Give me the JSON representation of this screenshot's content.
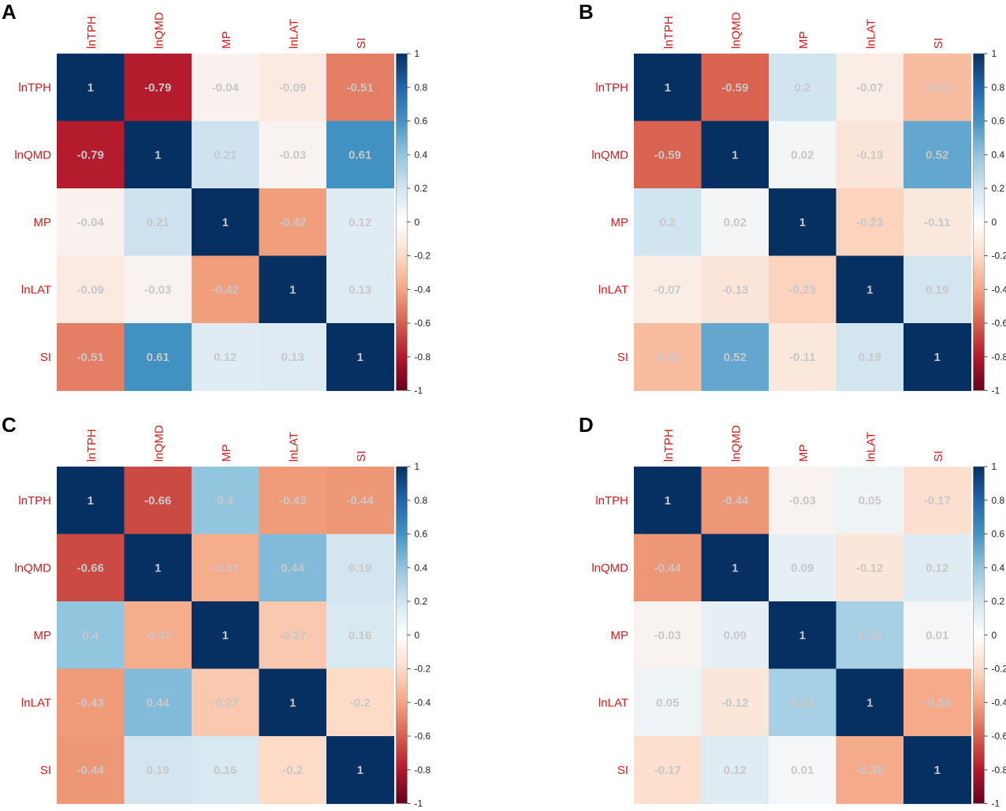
{
  "chart_data": [
    {
      "type": "heatmap",
      "panel_label": "A",
      "variables": [
        "lnTPH",
        "lnQMD",
        "MP",
        "lnLAT",
        "SI"
      ],
      "values": [
        [
          1,
          -0.79,
          -0.04,
          -0.09,
          -0.51
        ],
        [
          -0.79,
          1,
          0.21,
          -0.03,
          0.61
        ],
        [
          -0.04,
          0.21,
          1,
          -0.42,
          0.12
        ],
        [
          -0.09,
          -0.03,
          -0.42,
          1,
          0.13
        ],
        [
          -0.51,
          0.61,
          0.12,
          0.13,
          1
        ]
      ],
      "colorbar": {
        "range": [
          -1,
          1
        ],
        "ticks": [
          "1",
          "0.8",
          "0.6",
          "0.4",
          "0.2",
          "0",
          "-0.2",
          "-0.4",
          "-0.6",
          "-0.8",
          "-1"
        ]
      }
    },
    {
      "type": "heatmap",
      "panel_label": "B",
      "variables": [
        "lnTPH",
        "lnQMD",
        "MP",
        "lnLAT",
        "SI"
      ],
      "values": [
        [
          1,
          -0.59,
          0.2,
          -0.07,
          -0.31
        ],
        [
          -0.59,
          1,
          0.02,
          -0.13,
          0.52
        ],
        [
          0.2,
          0.02,
          1,
          -0.23,
          -0.11
        ],
        [
          -0.07,
          -0.13,
          -0.23,
          1,
          0.19
        ],
        [
          -0.31,
          0.52,
          -0.11,
          0.19,
          1
        ]
      ],
      "colorbar": {
        "range": [
          -1,
          1
        ],
        "ticks": [
          "1",
          "0.8",
          "0.6",
          "0.4",
          "0.2",
          "0",
          "-0.2",
          "-0.4",
          "-0.6",
          "-0.8",
          "-1"
        ]
      }
    },
    {
      "type": "heatmap",
      "panel_label": "C",
      "variables": [
        "lnTPH",
        "lnQMD",
        "MP",
        "lnLAT",
        "SI"
      ],
      "values": [
        [
          1,
          -0.66,
          0.4,
          -0.43,
          -0.44
        ],
        [
          -0.66,
          1,
          -0.37,
          0.44,
          0.19
        ],
        [
          0.4,
          -0.37,
          1,
          -0.27,
          0.16
        ],
        [
          -0.43,
          0.44,
          -0.27,
          1,
          -0.2
        ],
        [
          -0.44,
          0.19,
          0.16,
          -0.2,
          1
        ]
      ],
      "colorbar": {
        "range": [
          -1,
          1
        ],
        "ticks": [
          "1",
          "0.8",
          "0.6",
          "0.4",
          "0.2",
          "0",
          "-0.2",
          "-0.4",
          "-0.6",
          "-0.8",
          "-1"
        ]
      }
    },
    {
      "type": "heatmap",
      "panel_label": "D",
      "variables": [
        "lnTPH",
        "lnQMD",
        "MP",
        "lnLAT",
        "SI"
      ],
      "values": [
        [
          1,
          -0.44,
          -0.03,
          0.05,
          -0.17
        ],
        [
          -0.44,
          1,
          0.09,
          -0.12,
          0.12
        ],
        [
          -0.03,
          0.09,
          1,
          0.33,
          0.01
        ],
        [
          0.05,
          -0.12,
          0.33,
          1,
          -0.38
        ],
        [
          -0.17,
          0.12,
          0.01,
          -0.38,
          1
        ]
      ],
      "colorbar": {
        "range": [
          -1,
          1
        ],
        "ticks": [
          "1",
          "0.8",
          "0.6",
          "0.4",
          "0.2",
          "0",
          "-0.2",
          "-0.4",
          "-0.6",
          "-0.8",
          "-1"
        ]
      }
    }
  ],
  "colors": {
    "label_red": "#d7191c",
    "value_text": "#c8c8c8",
    "scale": [
      "#67001f",
      "#b2182b",
      "#d6604d",
      "#f4a582",
      "#fddbc7",
      "#f7f7f7",
      "#d1e5f0",
      "#92c5de",
      "#4393c3",
      "#2166ac",
      "#053061"
    ]
  }
}
